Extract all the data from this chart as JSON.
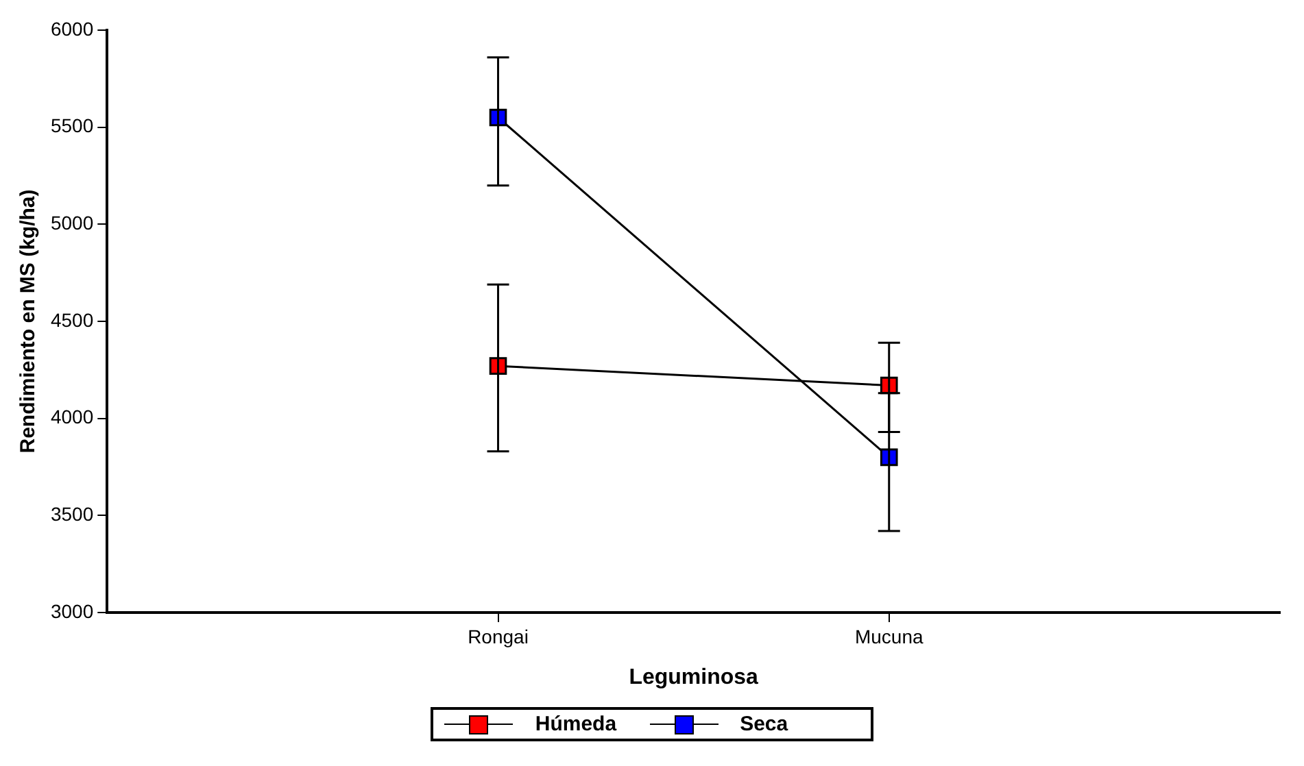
{
  "chart_data": {
    "type": "line",
    "xlabel": "Leguminosa",
    "ylabel": "Rendimiento en MS (kg/ha)",
    "categories": [
      "Rongai",
      "Mucuna"
    ],
    "series": [
      {
        "name": "Húmeda",
        "color": "#ff0000",
        "values": [
          4270,
          4170
        ],
        "errors": [
          [
            3830,
            4690
          ],
          [
            3930,
            4390
          ]
        ]
      },
      {
        "name": "Seca",
        "color": "#0000ff",
        "values": [
          5550,
          3800
        ],
        "errors": [
          [
            5200,
            5860
          ],
          [
            3420,
            4130
          ]
        ]
      }
    ],
    "ylim": [
      3000,
      6000
    ],
    "yticks": [
      3000,
      3500,
      4000,
      4500,
      5000,
      5500,
      6000
    ],
    "grid": false,
    "legend": "bottom",
    "marker": "square",
    "line_style": "solid"
  }
}
